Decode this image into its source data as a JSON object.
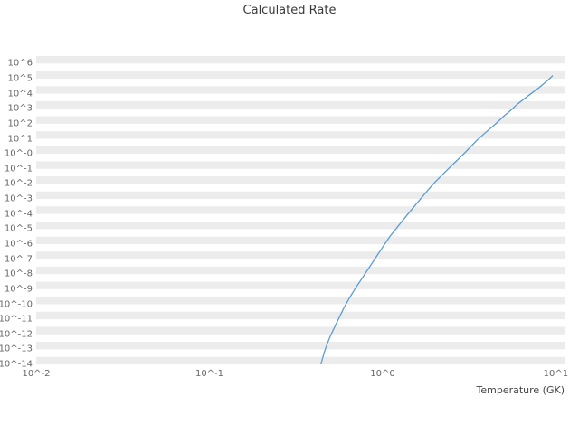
{
  "chart_data": {
    "type": "line",
    "title": "Calculated Rate",
    "xlabel": "Temperature (GK)",
    "ylabel": "",
    "x_scale": "log10",
    "y_scale": "log10",
    "xlim_log10": [
      -2,
      1.05
    ],
    "ylim_log10": [
      -14,
      6.5
    ],
    "grid": "horizontal-bands",
    "legend": "none",
    "line_color": "#5b9bd5",
    "band_color": "#ececec",
    "xticks": [
      {
        "log10": -2,
        "label": "10^-2"
      },
      {
        "log10": -1,
        "label": "10^-1"
      },
      {
        "log10": 0,
        "label": "10^0"
      },
      {
        "log10": 1,
        "label": "10^1"
      }
    ],
    "yticks": [
      {
        "log10": 6,
        "label": "10^6"
      },
      {
        "log10": 5,
        "label": "10^5"
      },
      {
        "log10": 4,
        "label": "10^4"
      },
      {
        "log10": 3,
        "label": "10^3"
      },
      {
        "log10": 2,
        "label": "10^2"
      },
      {
        "log10": 1,
        "label": "10^1"
      },
      {
        "log10": 0,
        "label": "10^-0"
      },
      {
        "log10": -1,
        "label": "10^-1"
      },
      {
        "log10": -2,
        "label": "10^-2"
      },
      {
        "log10": -3,
        "label": "10^-3"
      },
      {
        "log10": -4,
        "label": "10^-4"
      },
      {
        "log10": -5,
        "label": "10^-5"
      },
      {
        "log10": -6,
        "label": "10^-6"
      },
      {
        "log10": -7,
        "label": "10^-7"
      },
      {
        "log10": -8,
        "label": "10^-8"
      },
      {
        "log10": -9,
        "label": "10^-9"
      },
      {
        "log10": -10,
        "label": "10^-10"
      },
      {
        "log10": -11,
        "label": "10^-11"
      },
      {
        "log10": -12,
        "label": "10^-12"
      },
      {
        "log10": -13,
        "label": "10^-13"
      },
      {
        "log10": -14,
        "label": "10^-14"
      }
    ],
    "series": [
      {
        "name": "Calculated Rate",
        "T_GK": [
          0.44,
          0.46,
          0.48,
          0.5,
          0.55,
          0.6,
          0.65,
          0.7,
          0.8,
          0.9,
          1.0,
          1.1,
          1.25,
          1.4,
          1.6,
          1.8,
          2.0,
          2.3,
          2.6,
          3.0,
          3.5,
          4.0,
          4.5,
          5.0,
          5.5,
          6.0,
          7.0,
          8.0,
          9.0,
          9.6
        ],
        "log10_rate": [
          -14,
          -13.2,
          -12.6,
          -12.1,
          -11.1,
          -10.2,
          -9.5,
          -8.9,
          -7.9,
          -7.0,
          -6.2,
          -5.5,
          -4.7,
          -4.0,
          -3.2,
          -2.5,
          -1.9,
          -1.2,
          -0.6,
          0.1,
          0.9,
          1.5,
          2.0,
          2.5,
          2.9,
          3.3,
          3.9,
          4.4,
          4.9,
          5.2
        ]
      }
    ]
  }
}
